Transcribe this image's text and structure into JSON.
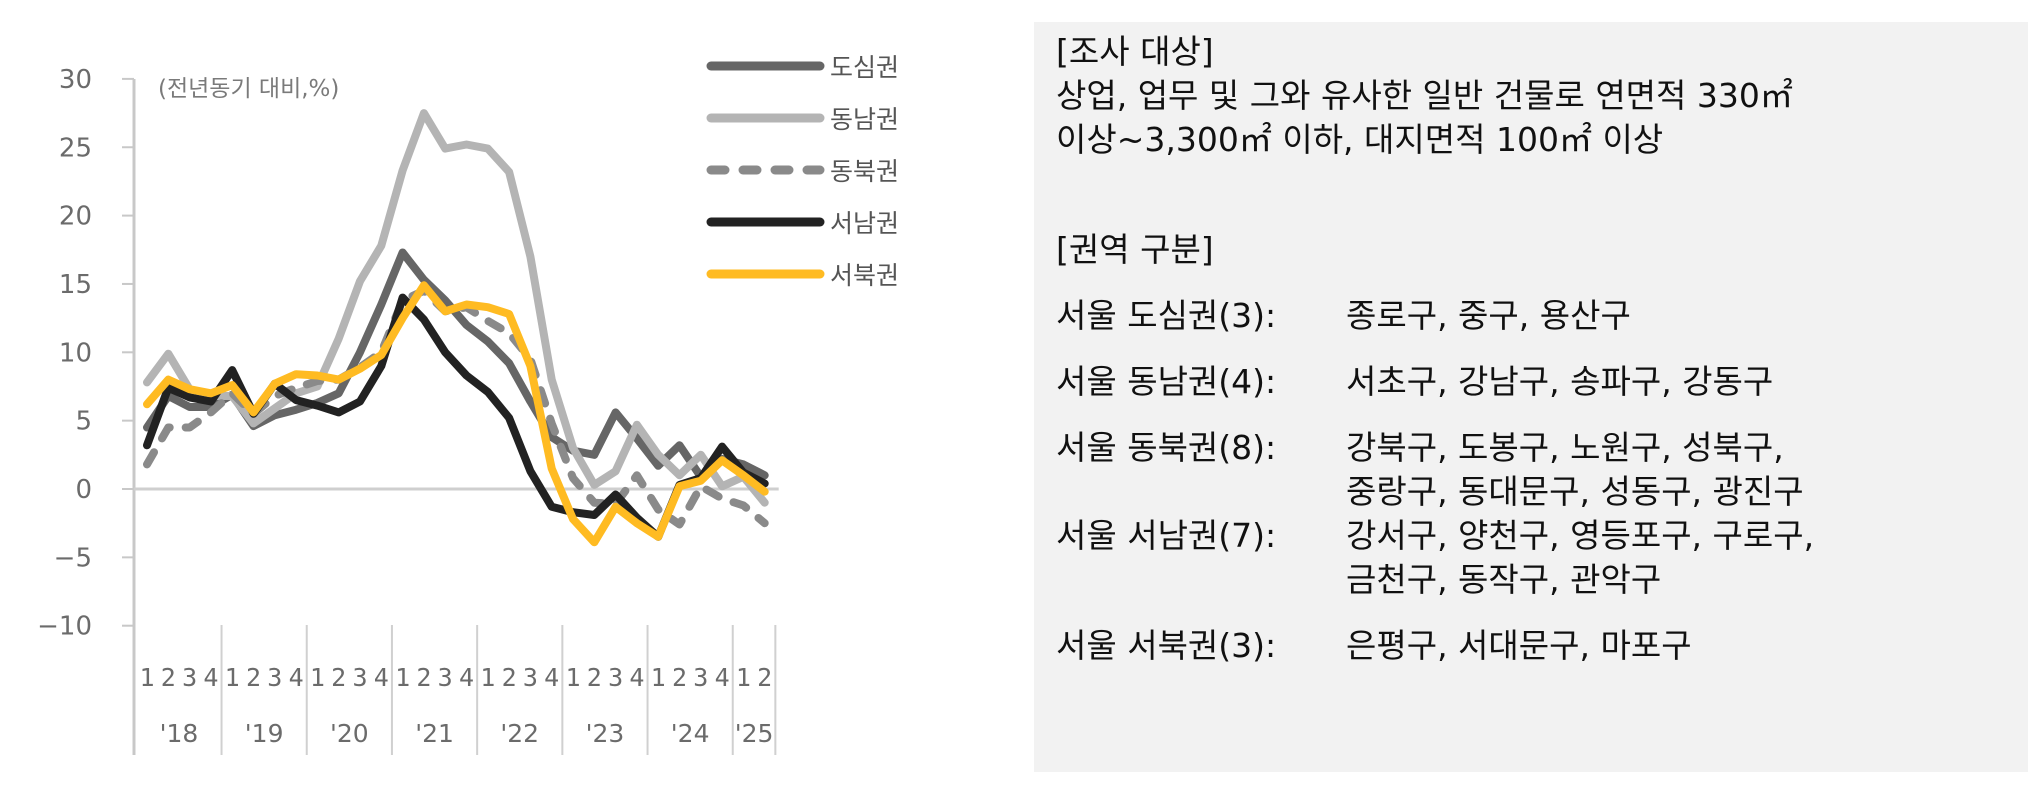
{
  "chart_data": {
    "type": "line",
    "title": "",
    "unit_label": "(전년동기 대비,%)",
    "xlabel": "",
    "ylabel": "",
    "ylim": [
      -10,
      30
    ],
    "yticks": [
      30,
      25,
      20,
      15,
      10,
      5,
      0,
      -5,
      -10
    ],
    "ytick_labels": [
      "30",
      "25",
      "20",
      "15",
      "10",
      "5",
      "0",
      "−5",
      "−10"
    ],
    "grid": false,
    "legend_position": "top-right",
    "years": [
      "'18",
      "'19",
      "'20",
      "'21",
      "'22",
      "'23",
      "'24",
      "'25"
    ],
    "quarters_per_year": [
      4,
      4,
      4,
      4,
      4,
      4,
      4,
      2
    ],
    "categories": [
      "18Q1",
      "18Q2",
      "18Q3",
      "18Q4",
      "19Q1",
      "19Q2",
      "19Q3",
      "19Q4",
      "20Q1",
      "20Q2",
      "20Q3",
      "20Q4",
      "21Q1",
      "21Q2",
      "21Q3",
      "21Q4",
      "22Q1",
      "22Q2",
      "22Q3",
      "22Q4",
      "23Q1",
      "23Q2",
      "23Q3",
      "23Q4",
      "24Q1",
      "24Q2",
      "24Q3",
      "24Q4",
      "25Q1",
      "25Q2"
    ],
    "series": [
      {
        "name": "도심권",
        "color": "#666666",
        "dash": "solid",
        "values": [
          4.5,
          6.8,
          6.0,
          6.0,
          6.9,
          4.6,
          5.4,
          5.8,
          6.3,
          7.0,
          10.0,
          13.5,
          17.3,
          15.3,
          13.8,
          12.0,
          10.8,
          9.2,
          6.4,
          3.8,
          2.8,
          2.5,
          5.6,
          3.7,
          1.7,
          3.2,
          0.9,
          2.2,
          1.8,
          1.0
        ]
      },
      {
        "name": "동남권",
        "color": "#b4b4b4",
        "dash": "solid",
        "values": [
          7.8,
          9.9,
          7.3,
          6.8,
          6.8,
          4.8,
          5.9,
          7.0,
          7.5,
          11.0,
          15.2,
          17.8,
          23.3,
          27.5,
          24.9,
          25.2,
          24.9,
          23.2,
          17.0,
          8.0,
          3.0,
          0.3,
          1.3,
          4.7,
          2.5,
          1.0,
          2.5,
          0.2,
          0.9,
          -1.0
        ]
      },
      {
        "name": "동북권",
        "color": "#8a8a8a",
        "dash": "dashed",
        "values": [
          1.8,
          4.5,
          4.5,
          5.6,
          7.0,
          5.5,
          6.8,
          7.4,
          7.9,
          8.0,
          8.9,
          10.0,
          13.8,
          14.5,
          13.0,
          13.3,
          12.3,
          11.4,
          9.5,
          4.8,
          0.8,
          -1.0,
          -1.1,
          1.0,
          -1.5,
          -2.6,
          0.2,
          -0.7,
          -1.2,
          -2.5
        ]
      },
      {
        "name": "서남권",
        "color": "#222222",
        "dash": "solid",
        "values": [
          3.2,
          7.4,
          6.7,
          6.4,
          8.7,
          5.5,
          7.7,
          6.5,
          6.1,
          5.6,
          6.4,
          9.0,
          14.0,
          12.4,
          10.0,
          8.3,
          7.1,
          5.2,
          1.3,
          -1.3,
          -1.7,
          -1.9,
          -0.4,
          -2.1,
          -3.5,
          0.3,
          0.8,
          3.1,
          1.2,
          0.4
        ]
      },
      {
        "name": "서북권",
        "color": "#ffbb22",
        "dash": "solid",
        "values": [
          6.2,
          8.0,
          7.3,
          7.0,
          7.6,
          5.6,
          7.7,
          8.4,
          8.3,
          8.0,
          8.8,
          9.8,
          12.5,
          14.9,
          13.0,
          13.5,
          13.3,
          12.8,
          9.0,
          1.5,
          -2.2,
          -3.9,
          -1.3,
          -2.5,
          -3.5,
          0.2,
          0.6,
          2.1,
          1.0,
          -0.2
        ]
      }
    ]
  },
  "chart_labels": {
    "unit": "(전년동기 대비,%)",
    "legend": [
      "도심권",
      "동남권",
      "동북권",
      "서남권",
      "서북권"
    ]
  },
  "info_panel": {
    "survey_heading": "[조사 대상]",
    "survey_line1": "상업, 업무 및 그와 유사한 일반 건물로 연면적 330㎡",
    "survey_line2": "이상~3,300㎡ 이하, 대지면적 100㎡ 이상",
    "region_heading": "[권역 구분]",
    "regions": [
      {
        "label": "서울 도심권(3):",
        "lines": [
          "종로구, 중구, 용산구"
        ]
      },
      {
        "label": "서울 동남권(4):",
        "lines": [
          "서초구, 강남구, 송파구, 강동구"
        ]
      },
      {
        "label": "서울 동북권(8):",
        "lines": [
          "강북구, 도봉구, 노원구, 성북구,",
          "중랑구, 동대문구, 성동구, 광진구"
        ]
      },
      {
        "label": "서울 서남권(7):",
        "lines": [
          "강서구, 양천구, 영등포구, 구로구,",
          "금천구, 동작구, 관악구"
        ]
      },
      {
        "label": "서울 서북권(3):",
        "lines": [
          "은평구, 서대문구, 마포구"
        ]
      }
    ]
  }
}
